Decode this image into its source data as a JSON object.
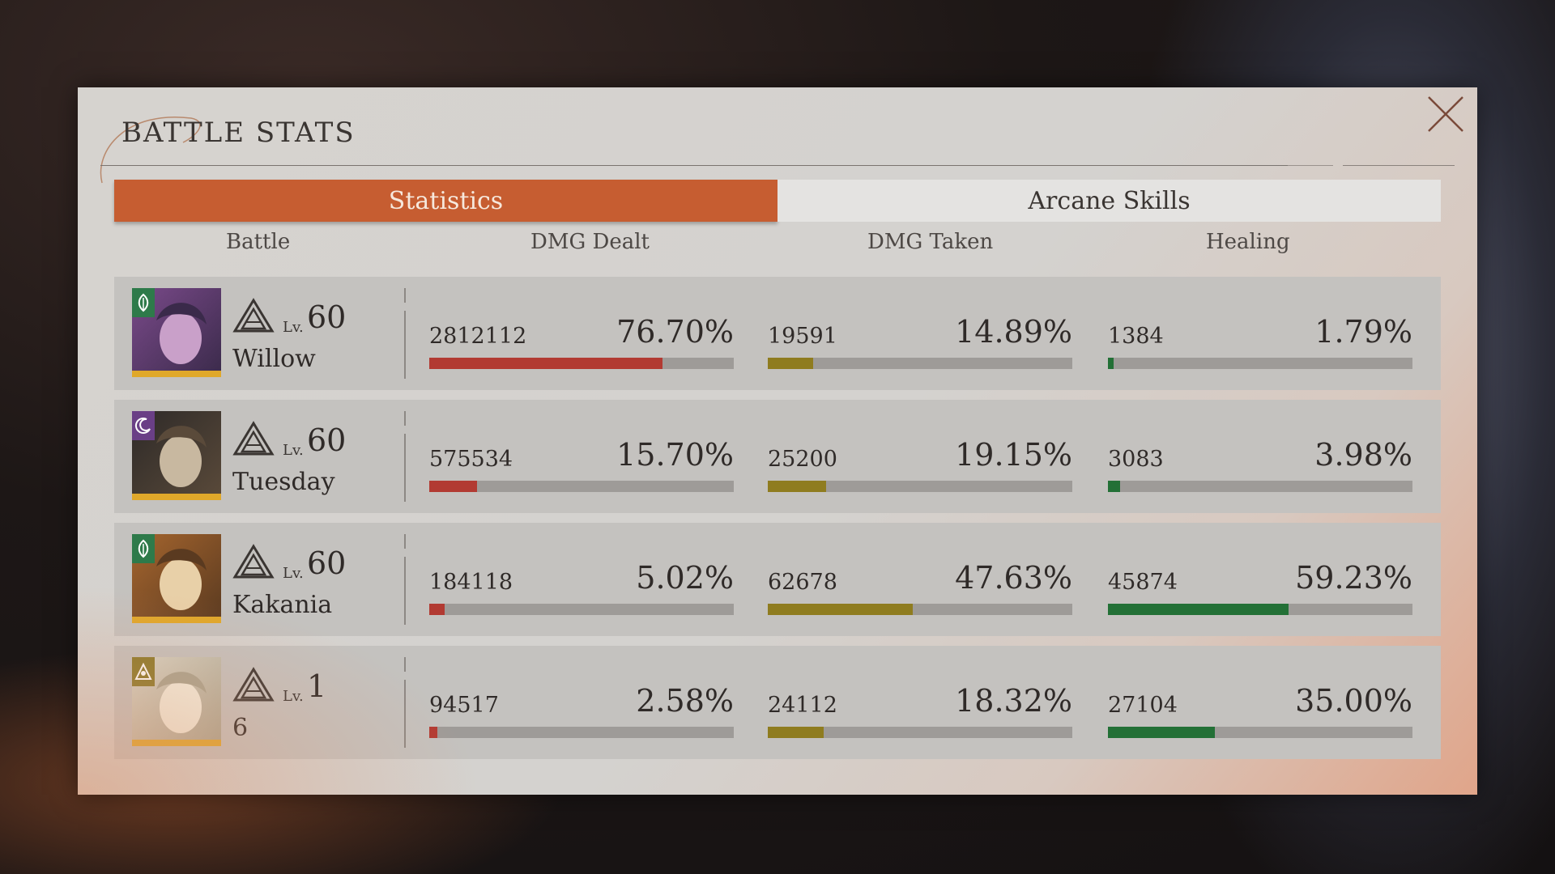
{
  "panel": {
    "title": "BATTLE STATS"
  },
  "tabs": [
    {
      "label": "Statistics",
      "active": true
    },
    {
      "label": "Arcane Skills",
      "active": false
    }
  ],
  "columns": {
    "battle": "Battle",
    "dmg_dealt": "DMG Dealt",
    "dmg_taken": "DMG Taken",
    "healing": "Healing"
  },
  "colors": {
    "accent": "#c65d31",
    "dmg_dealt_bar": "#b23a32",
    "dmg_taken_bar": "#8f7c1f",
    "healing_bar": "#237036"
  },
  "rows": [
    {
      "name": "Willow",
      "lv_label": "Lv.",
      "level": "60",
      "element_icon": "leaf-icon",
      "element_color": "#2e7a4a",
      "dmg_dealt": {
        "value": "2812112",
        "percent": "76.70%",
        "fraction": 0.767
      },
      "dmg_taken": {
        "value": "19591",
        "percent": "14.89%",
        "fraction": 0.1489
      },
      "healing": {
        "value": "1384",
        "percent": "1.79%",
        "fraction": 0.0179
      }
    },
    {
      "name": "Tuesday",
      "lv_label": "Lv.",
      "level": "60",
      "element_icon": "moon-icon",
      "element_color": "#6a3f86",
      "dmg_dealt": {
        "value": "575534",
        "percent": "15.70%",
        "fraction": 0.157
      },
      "dmg_taken": {
        "value": "25200",
        "percent": "19.15%",
        "fraction": 0.1915
      },
      "healing": {
        "value": "3083",
        "percent": "3.98%",
        "fraction": 0.0398
      }
    },
    {
      "name": "Kakania",
      "lv_label": "Lv.",
      "level": "60",
      "element_icon": "leaf-icon",
      "element_color": "#2e7a4a",
      "dmg_dealt": {
        "value": "184118",
        "percent": "5.02%",
        "fraction": 0.0502
      },
      "dmg_taken": {
        "value": "62678",
        "percent": "47.63%",
        "fraction": 0.4763
      },
      "healing": {
        "value": "45874",
        "percent": "59.23%",
        "fraction": 0.5923
      }
    },
    {
      "name": "6",
      "lv_label": "Lv.",
      "level": "1",
      "element_icon": "pyramid-icon",
      "element_color": "#8a7a2a",
      "dmg_dealt": {
        "value": "94517",
        "percent": "2.58%",
        "fraction": 0.0258
      },
      "dmg_taken": {
        "value": "24112",
        "percent": "18.32%",
        "fraction": 0.1832
      },
      "healing": {
        "value": "27104",
        "percent": "35.00%",
        "fraction": 0.35
      }
    }
  ]
}
